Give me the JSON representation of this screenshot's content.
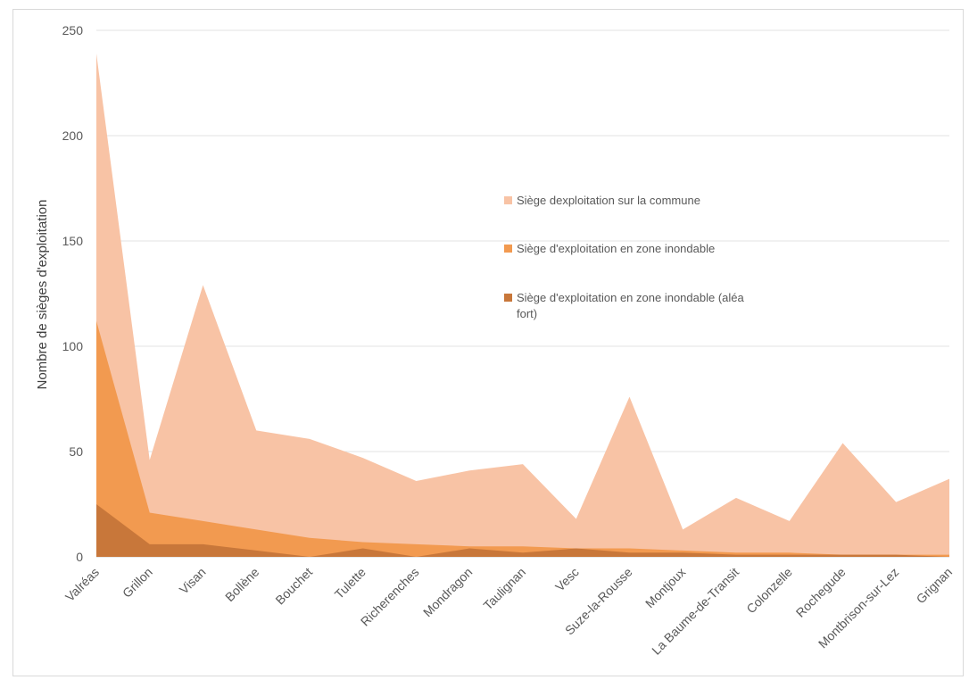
{
  "chart_data": {
    "type": "area",
    "title": "",
    "xlabel": "",
    "ylabel": "Nombre de sièges d'exploitation",
    "ylim": [
      0,
      250
    ],
    "yticks": [
      0,
      50,
      100,
      150,
      200,
      250
    ],
    "grid": true,
    "legend_position": "center-right",
    "categories": [
      "Valréas",
      "Grillon",
      "Visan",
      "Bollène",
      "Bouchet",
      "Tulette",
      "Richerenches",
      "Mondragon",
      "Taulignan",
      "Vesc",
      "Suze-la-Rousse",
      "Montjoux",
      "La Baume-de-Transit",
      "Colonzelle",
      "Rochegude",
      "Montbrison-sur-Lez",
      "Grignan"
    ],
    "series": [
      {
        "name": "Siège dexploitation sur la commune",
        "color": "#f8c3a5",
        "values": [
          239,
          46,
          129,
          60,
          56,
          47,
          36,
          41,
          44,
          18,
          76,
          13,
          28,
          17,
          54,
          26,
          37
        ]
      },
      {
        "name": "Siège d'exploitation en zone inondable",
        "color": "#f29a50",
        "values": [
          112,
          21,
          17,
          13,
          9,
          7,
          6,
          5,
          5,
          4,
          4,
          3,
          2,
          2,
          1,
          1,
          1
        ]
      },
      {
        "name": "Siège d'exploitation en zone inondable (aléa fort)",
        "color": "#c8773a",
        "values": [
          25,
          6,
          6,
          3,
          0,
          4,
          0,
          4,
          2,
          4,
          2,
          2,
          1,
          1,
          1,
          1,
          0
        ]
      }
    ]
  }
}
